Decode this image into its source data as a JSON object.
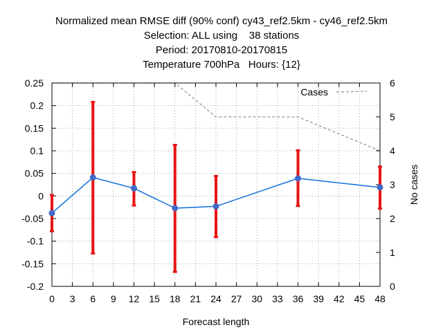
{
  "title_lines": [
    "Normalized mean RMSE diff (90% conf) cy43_ref2.5km - cy46_ref2.5km",
    "Selection: ALL using    38 stations",
    "Period: 20170810-20170815",
    "Temperature 700hPa   Hours: {12}"
  ],
  "chart_data": {
    "type": "line",
    "xlabel": "Forecast length",
    "ylabel_right": "No cases",
    "x_ticks": [
      0,
      3,
      6,
      9,
      12,
      15,
      18,
      21,
      24,
      27,
      30,
      33,
      36,
      39,
      42,
      45,
      48
    ],
    "xlim": [
      0,
      48
    ],
    "y_ticks": [
      0.25,
      0.2,
      0.15,
      0.1,
      0.05,
      0,
      -0.05,
      -0.1,
      -0.15,
      -0.2
    ],
    "y_tick_labels": [
      "0.25",
      "0.2",
      "0.15",
      "0.1",
      "0.05",
      "0",
      "-0.05",
      "-0.1",
      "-0.15",
      "-0.2"
    ],
    "ylim": [
      -0.2,
      0.25
    ],
    "y2_ticks": [
      0,
      1,
      2,
      3,
      4,
      5,
      6
    ],
    "y2lim": [
      0,
      6
    ],
    "grid": true,
    "legend_position": "top-right",
    "series": [
      {
        "style": "line-with-errorbars",
        "color": "#1e78dc",
        "marker_color": "#4169c8",
        "errorbar_color": "#e61414",
        "x": [
          0,
          6,
          12,
          18,
          24,
          36,
          48
        ],
        "y": [
          -0.038,
          0.041,
          0.017,
          -0.027,
          -0.023,
          0.039,
          0.019
        ],
        "y_low": [
          -0.078,
          -0.127,
          -0.021,
          -0.168,
          -0.091,
          -0.022,
          -0.028
        ],
        "y_high": [
          0.002,
          0.208,
          0.053,
          0.113,
          0.044,
          0.101,
          0.065
        ]
      },
      {
        "name": "Cases",
        "style": "dashed",
        "axis": "right",
        "color": "#909090",
        "x": [
          0,
          6,
          12,
          18,
          24,
          36,
          48
        ],
        "y": [
          6,
          6,
          6,
          6,
          5,
          5,
          4
        ]
      }
    ]
  }
}
